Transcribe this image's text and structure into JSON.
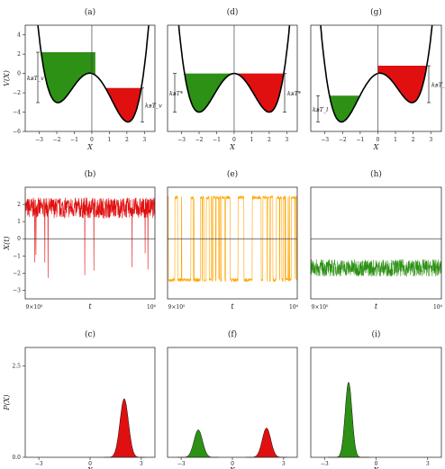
{
  "row1_ylabel": "V(X)",
  "row2_ylabel": "X(t)",
  "row3_ylabel": "P(X)",
  "colors": {
    "red": "#e01010",
    "green": "#2d9115",
    "orange": "#ffa500",
    "curve": "#000000",
    "axis": "#333333"
  },
  "chart_data": [
    {
      "type": "line",
      "panel": "(a)",
      "xlabel": "X",
      "ylabel": "V(X)",
      "xlim": [
        -3.8,
        3.6
      ],
      "ylim": [
        -6,
        5
      ],
      "x_ticks": [
        "-3",
        "-2",
        "-1",
        "0",
        "1",
        "2",
        "3"
      ],
      "y_ticks": [
        "4",
        "2",
        "0",
        "-2",
        "-4",
        "-6"
      ],
      "potential": "V(X) = X^4/4 - 2X^2 - 0.5X (asymmetric double well, deeper well on right)",
      "fills": [
        {
          "well": "left",
          "color": "green",
          "level": 2.2
        },
        {
          "well": "right",
          "color": "red",
          "level": -1.5
        }
      ],
      "annotations": [
        "k_BT_v",
        "k_BT_v"
      ]
    },
    {
      "type": "line",
      "panel": "(d)",
      "xlabel": "X",
      "xlim": [
        -3.8,
        3.6
      ],
      "ylim": [
        -6,
        5
      ],
      "x_ticks": [
        "-3",
        "-2",
        "-1",
        "0",
        "1",
        "2",
        "3"
      ],
      "potential": "same as (a)",
      "fills": [
        {
          "well": "left",
          "color": "green",
          "level": 0
        },
        {
          "well": "right",
          "color": "red",
          "level": 0
        }
      ],
      "annotations": [
        "k_BT*",
        "k_BT*"
      ]
    },
    {
      "type": "line",
      "panel": "(g)",
      "xlabel": "X",
      "xlim": [
        -3.8,
        3.6
      ],
      "ylim": [
        -6,
        5
      ],
      "x_ticks": [
        "-3",
        "-2",
        "-1",
        "0",
        "1",
        "2",
        "3"
      ],
      "potential": "V(X) = X^4/4 - 2X^2 + 0.5X (deeper well on left)",
      "fills": [
        {
          "well": "left",
          "color": "green",
          "level": -2.3
        },
        {
          "well": "right",
          "color": "red",
          "level": 0.8
        }
      ],
      "annotations": [
        "k_BT_l",
        "k_BT_l"
      ]
    },
    {
      "type": "line",
      "panel": "(b)",
      "xlabel": "t",
      "ylabel": "X(t)",
      "xlim": [
        900000,
        1000000
      ],
      "ylim": [
        -3.5,
        3
      ],
      "x_ticks": [
        "9×10⁵",
        "10⁶"
      ],
      "y_ticks": [
        "2",
        "1",
        "0",
        "-1",
        "-2",
        "-3"
      ],
      "series": [
        {
          "color": "red",
          "mean": 1.8,
          "spread": 0.6,
          "dips_to": -2.3
        }
      ]
    },
    {
      "type": "line",
      "panel": "(e)",
      "xlabel": "t",
      "xlim": [
        900000,
        1000000
      ],
      "ylim": [
        -3.5,
        3
      ],
      "x_ticks": [
        "9×10⁵",
        "10⁶"
      ],
      "series": [
        {
          "color": "orange",
          "switching_between": [
            -2.5,
            2.5
          ]
        }
      ]
    },
    {
      "type": "line",
      "panel": "(h)",
      "xlabel": "t",
      "xlim": [
        900000,
        1000000
      ],
      "ylim": [
        -3.5,
        3
      ],
      "x_ticks": [
        "9×10⁵",
        "10⁶"
      ],
      "series": [
        {
          "color": "green",
          "mean": -1.7,
          "spread": 0.5
        }
      ]
    },
    {
      "type": "area",
      "panel": "(c)",
      "xlabel": "X",
      "ylabel": "P(X)",
      "xlim": [
        -3.8,
        3.8
      ],
      "ylim": [
        0,
        3
      ],
      "x_ticks": [
        "-3",
        "0",
        "3"
      ],
      "y_ticks": [
        "2.5",
        "0.0"
      ],
      "peaks": [
        {
          "center": 2.0,
          "height": 1.6,
          "width": 0.25,
          "color": "red"
        }
      ]
    },
    {
      "type": "area",
      "panel": "(f)",
      "xlabel": "X",
      "xlim": [
        -3.8,
        3.8
      ],
      "ylim": [
        0,
        3
      ],
      "x_ticks": [
        "-3",
        "0",
        "3"
      ],
      "peaks": [
        {
          "center": -2.0,
          "height": 0.75,
          "width": 0.25,
          "color": "green"
        },
        {
          "center": 2.0,
          "height": 0.8,
          "width": 0.25,
          "color": "red"
        }
      ]
    },
    {
      "type": "area",
      "panel": "(i)",
      "xlabel": "X",
      "xlim": [
        -3.8,
        3.8
      ],
      "ylim": [
        0,
        3
      ],
      "x_ticks": [
        "-3",
        "0",
        "3"
      ],
      "peaks": [
        {
          "center": -1.6,
          "height": 2.05,
          "width": 0.2,
          "color": "green"
        }
      ]
    }
  ]
}
